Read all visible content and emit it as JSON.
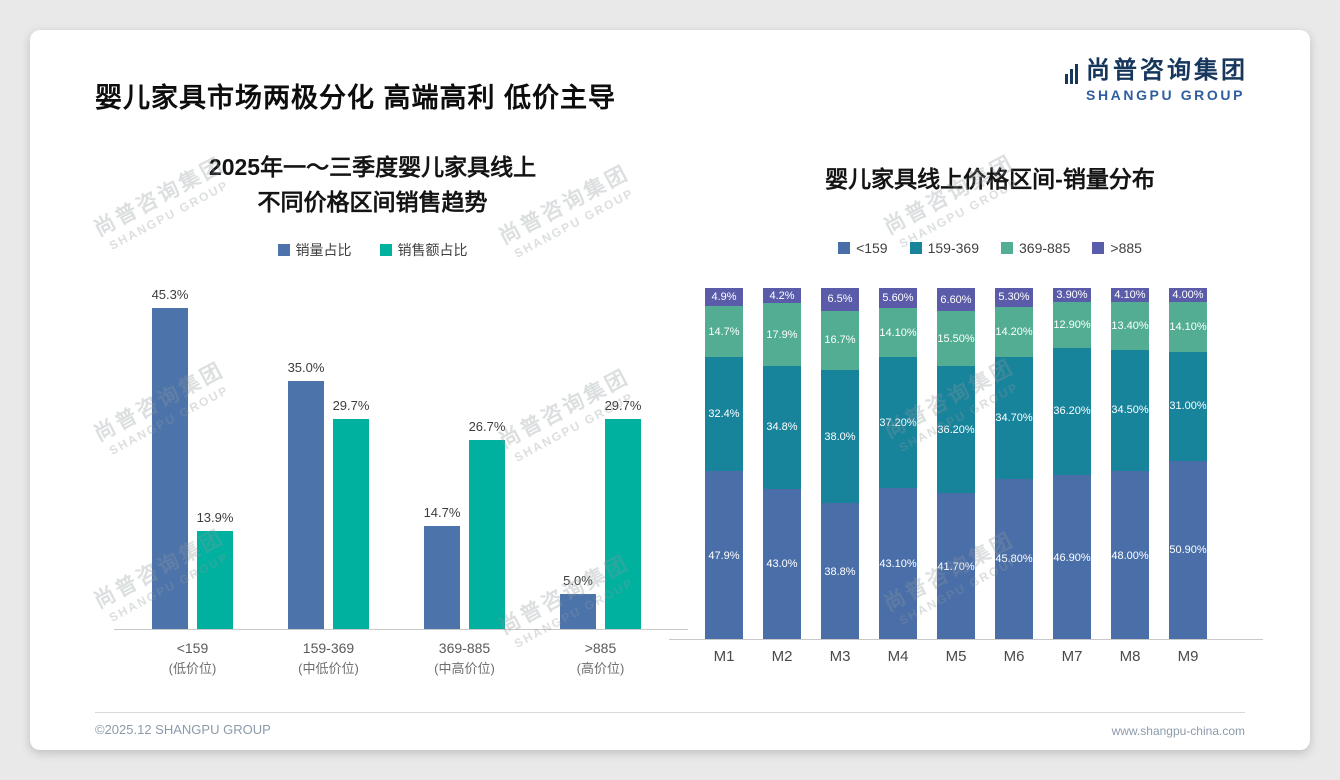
{
  "page": {
    "title": "婴儿家具市场两极分化 高端高利 低价主导",
    "logo": {
      "cn": "尚普咨询集团",
      "en": "SHANGPU GROUP"
    },
    "watermark": {
      "cn": "尚普咨询集团",
      "en": "SHANGPU GROUP"
    },
    "footer": {
      "left": "©2025.12 SHANGPU GROUP",
      "right": "www.shangpu-china.com"
    }
  },
  "chart_data": [
    {
      "type": "bar",
      "title_lines": [
        "2025年一～三季度婴儿家具线上",
        "不同价格区间销售趋势"
      ],
      "categories": [
        "<159",
        "159-369",
        "369-885",
        ">885"
      ],
      "category_sublabels": [
        "(低价位)",
        "(中低价位)",
        "(中高价位)",
        "(高价位)"
      ],
      "series": [
        {
          "name": "销量占比",
          "color": "#4C74AB",
          "values": [
            45.3,
            35.0,
            14.7,
            5.0
          ],
          "labels": [
            "45.3%",
            "35.0%",
            "14.7%",
            "5.0%"
          ]
        },
        {
          "name": "销售额占比",
          "color": "#00B1A0",
          "values": [
            13.9,
            29.7,
            26.7,
            29.7
          ],
          "labels": [
            "13.9%",
            "29.7%",
            "26.7%",
            "29.7%"
          ]
        }
      ],
      "ylim": [
        0,
        50
      ],
      "grid": false,
      "legend_position": "top"
    },
    {
      "type": "stacked-bar",
      "title": "婴儿家具线上价格区间-销量分布",
      "categories": [
        "M1",
        "M2",
        "M3",
        "M4",
        "M5",
        "M6",
        "M7",
        "M8",
        "M9"
      ],
      "series": [
        {
          "name": "<159",
          "color": "#4A6FA8",
          "values": [
            47.9,
            43.0,
            38.8,
            43.1,
            41.7,
            45.8,
            46.9,
            48.0,
            50.9
          ],
          "labels": [
            "47.9%",
            "43.0%",
            "38.8%",
            "43.10%",
            "41.70%",
            "45.80%",
            "46.90%",
            "48.00%",
            "50.90%"
          ]
        },
        {
          "name": "159-369",
          "color": "#17849B",
          "values": [
            32.4,
            34.8,
            38.0,
            37.2,
            36.2,
            34.7,
            36.2,
            34.5,
            31.0
          ],
          "labels": [
            "32.4%",
            "34.8%",
            "38.0%",
            "37.20%",
            "36.20%",
            "34.70%",
            "36.20%",
            "34.50%",
            "31.00%"
          ]
        },
        {
          "name": "369-885",
          "color": "#52AD92",
          "values": [
            14.7,
            17.9,
            16.7,
            14.1,
            15.5,
            14.2,
            12.9,
            13.4,
            14.1
          ],
          "labels": [
            "14.7%",
            "17.9%",
            "16.7%",
            "14.10%",
            "15.50%",
            "14.20%",
            "12.90%",
            "13.40%",
            "14.10%"
          ]
        },
        {
          "name": ">885",
          "color": "#5A5CA9",
          "values": [
            4.9,
            4.2,
            6.5,
            5.6,
            6.6,
            5.3,
            3.9,
            4.1,
            4.0
          ],
          "labels": [
            "4.9%",
            "4.2%",
            "6.5%",
            "5.60%",
            "6.60%",
            "5.30%",
            "3.90%",
            "4.10%",
            "4.00%"
          ]
        }
      ],
      "ylim": [
        0,
        100
      ],
      "grid": false,
      "legend_position": "top"
    }
  ]
}
